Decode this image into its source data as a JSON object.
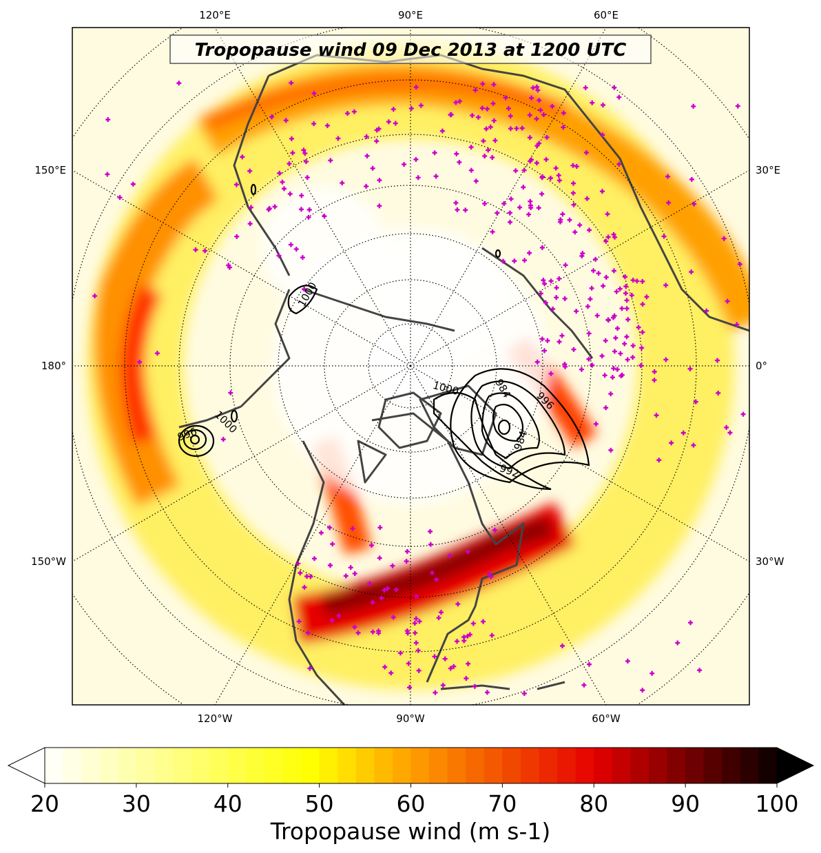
{
  "title": "Tropopause wind 09 Dec 2013 at 1200 UTC",
  "lon_labels": {
    "top": [
      "120°E",
      "90°E",
      "60°E"
    ],
    "left": [
      "150°E",
      "180°",
      "150°W"
    ],
    "right": [
      "30°E",
      "0°",
      "30°W"
    ],
    "bottom": [
      "120°W",
      "90°W",
      "60°W"
    ]
  },
  "contour_labels": [
    "1000",
    "1000",
    "996",
    "984",
    "996",
    "984",
    "992",
    "1000"
  ],
  "colorbar": {
    "label": "Tropopause wind (m s-1)",
    "min": 20,
    "max": 100,
    "step": 2,
    "ticks": [
      "20",
      "30",
      "40",
      "50",
      "60",
      "70",
      "80",
      "90",
      "100"
    ],
    "extend": "both",
    "colormap": "hot_r"
  },
  "colors": {
    "coastline": "#444444",
    "stations": "#cc00cc",
    "contours": "#000000",
    "graticule": "#000000"
  }
}
